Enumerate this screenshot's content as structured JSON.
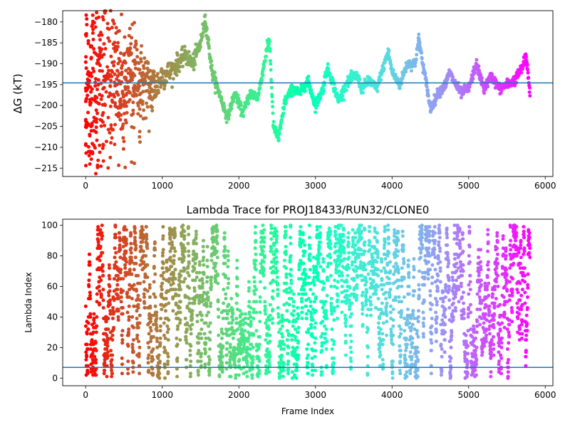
{
  "chart_data": [
    {
      "type": "scatter",
      "title": "",
      "xlabel": "",
      "ylabel": "ΔG (kT)",
      "xlim": [
        -300,
        6100
      ],
      "ylim": [
        -217,
        -177.3
      ],
      "x_ticks": [
        0,
        1000,
        2000,
        3000,
        4000,
        5000,
        6000
      ],
      "y_ticks": [
        -215,
        -210,
        -205,
        -200,
        -195,
        -190,
        -185,
        -180
      ],
      "hline": -194.6,
      "hline_color": "#1f77b4",
      "color_scheme": "rainbow: red at frame 0 through cyan to violet at the last frame",
      "marker_size": 2.5,
      "series_shape": {
        "x_range": [
          0,
          5800
        ],
        "n_points": 1800,
        "anchor_frames": [
          0,
          100,
          200,
          300,
          400,
          500,
          600,
          700,
          800,
          900,
          1000,
          1100,
          1200,
          1300,
          1400,
          1500,
          1560,
          1650,
          1780,
          1850,
          1950,
          2050,
          2150,
          2250,
          2350,
          2400,
          2450,
          2520,
          2600,
          2700,
          2800,
          2900,
          3000,
          3100,
          3150,
          3200,
          3300,
          3400,
          3500,
          3550,
          3600,
          3700,
          3800,
          3900,
          3950,
          4000,
          4100,
          4200,
          4300,
          4350,
          4400,
          4460,
          4500,
          4600,
          4700,
          4750,
          4800,
          4900,
          5000,
          5100,
          5200,
          5300,
          5400,
          5500,
          5600,
          5700,
          5750,
          5800
        ],
        "anchor_values": [
          -200,
          -195,
          -195,
          -190,
          -193,
          -197,
          -190,
          -193,
          -194,
          -196,
          -193,
          -192,
          -190,
          -188,
          -190,
          -185,
          -179,
          -192,
          -199,
          -203,
          -197,
          -202,
          -197,
          -198,
          -188,
          -184,
          -205,
          -208,
          -199,
          -196,
          -197,
          -194,
          -200,
          -196,
          -191,
          -193,
          -199,
          -195,
          -193,
          -193,
          -196,
          -194,
          -196,
          -190,
          -187,
          -192,
          -195,
          -190,
          -190,
          -184,
          -190,
          -196,
          -201,
          -197,
          -195,
          -192,
          -194,
          -197,
          -196,
          -190,
          -196,
          -193,
          -196,
          -195,
          -194,
          -191,
          -188,
          -197
        ],
        "noise_sd_kT": [
          12,
          12,
          10,
          8,
          7,
          6,
          5,
          4,
          3,
          2,
          1.5,
          1.2,
          1,
          1,
          1,
          0.8,
          0.8,
          0.8
        ]
      }
    },
    {
      "type": "scatter",
      "title": "Lambda Trace for PROJ18433/RUN32/CLONE0",
      "xlabel": "Frame Index",
      "ylabel": "Lambda Index",
      "xlim": [
        -300,
        6100
      ],
      "ylim": [
        -5,
        104
      ],
      "x_ticks": [
        0,
        1000,
        2000,
        3000,
        4000,
        5000,
        6000
      ],
      "y_ticks": [
        0,
        20,
        40,
        60,
        80,
        100
      ],
      "hline": 7,
      "hline_color": "#1f77b4",
      "color_scheme": "rainbow: red at frame 0 through cyan to violet at the last frame",
      "marker_size": 2.5,
      "series_shape": {
        "x_range": [
          0,
          5800
        ],
        "n_points": 3600,
        "values_range": [
          0,
          100
        ],
        "pattern": "random walk between lambda 0 and 100"
      }
    }
  ]
}
